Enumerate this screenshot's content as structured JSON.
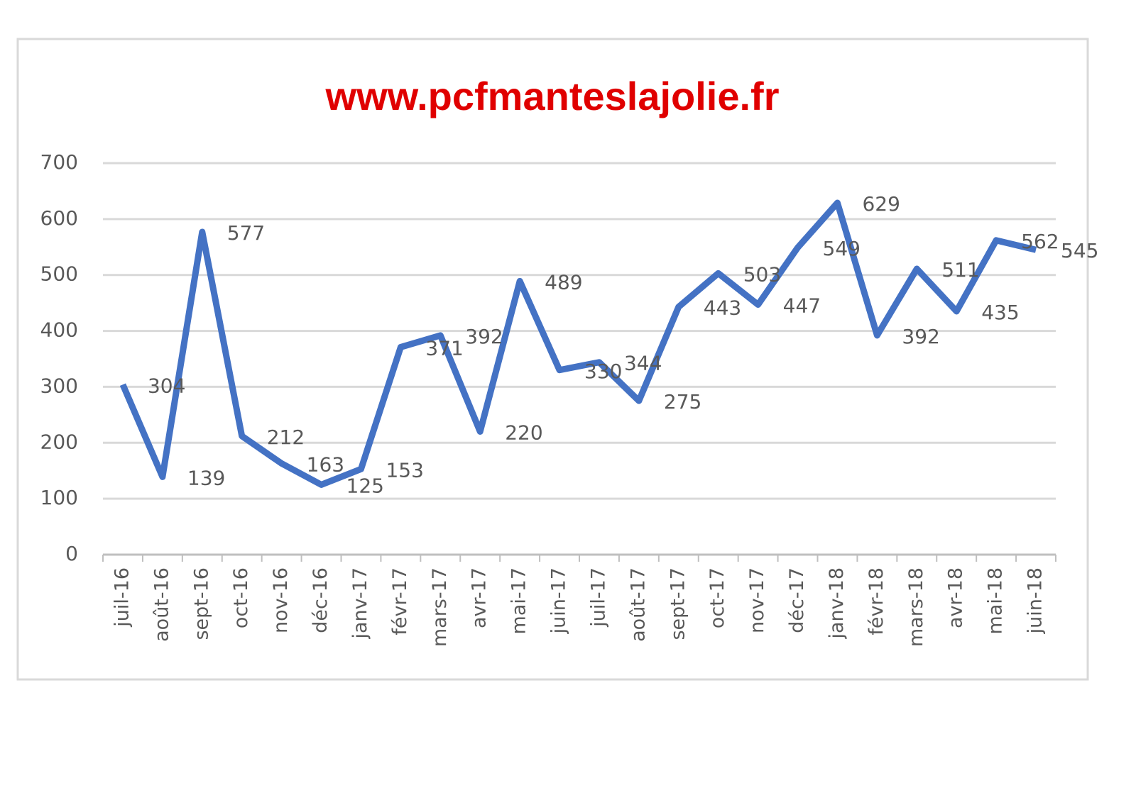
{
  "chart_data": {
    "type": "line",
    "title": "www.pcfmanteslajolie.fr",
    "categories": [
      "juil-16",
      "août-16",
      "sept-16",
      "oct-16",
      "nov-16",
      "déc-16",
      "janv-17",
      "févr-17",
      "mars-17",
      "avr-17",
      "mai-17",
      "juin-17",
      "juil-17",
      "août-17",
      "sept-17",
      "oct-17",
      "nov-17",
      "déc-17",
      "janv-18",
      "févr-18",
      "mars-18",
      "avr-18",
      "mai-18",
      "juin-18"
    ],
    "values": [
      304,
      139,
      577,
      212,
      163,
      125,
      153,
      371,
      392,
      220,
      489,
      330,
      344,
      275,
      443,
      503,
      447,
      549,
      629,
      392,
      511,
      435,
      562,
      545
    ],
    "color": "#4472c4",
    "ylim": [
      0,
      700
    ],
    "yticks": [
      0,
      100,
      200,
      300,
      400,
      500,
      600,
      700
    ],
    "grid": true
  }
}
